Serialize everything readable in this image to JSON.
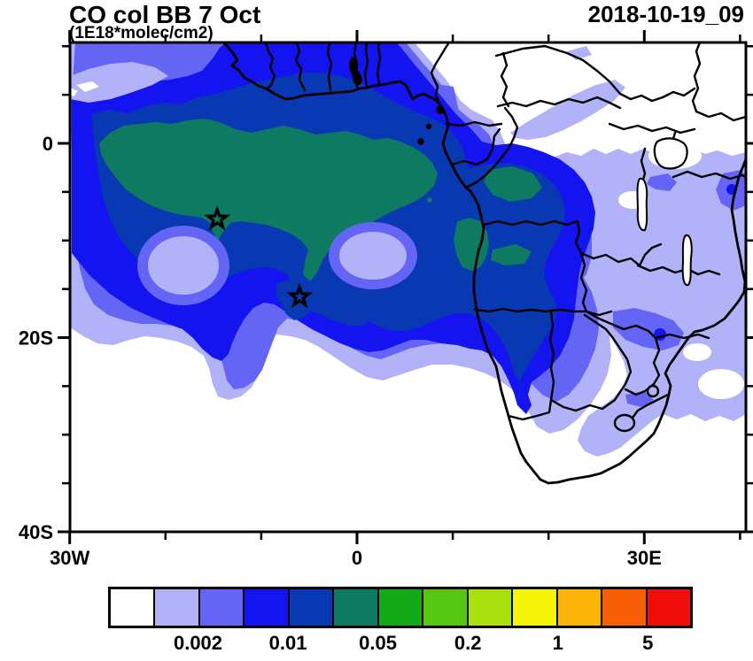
{
  "header": {
    "title": "CO col BB 7 Oct",
    "subtitle": "(1E18*molec/cm2)",
    "datetime": "2018-10-19_09"
  },
  "axes": {
    "x": {
      "major": [
        {
          "lon": -30,
          "label": "30W"
        },
        {
          "lon": 0,
          "label": "0"
        },
        {
          "lon": 30,
          "label": "30E"
        }
      ],
      "minor_lons": [
        -20,
        -10,
        10,
        20,
        40
      ]
    },
    "y": {
      "major": [
        {
          "lat": 0,
          "label": "0"
        },
        {
          "lat": -20,
          "label": "20S"
        },
        {
          "lat": -40,
          "label": "40S"
        }
      ],
      "minor_lats": [
        10,
        5,
        -5,
        -10,
        -15,
        -25,
        -30,
        -35
      ]
    }
  },
  "colorbar": {
    "colors": [
      "#ffffff",
      "#b2b2f8",
      "#6565f5",
      "#1414f0",
      "#0838b2",
      "#0e7a62",
      "#12aa16",
      "#55c712",
      "#aadf10",
      "#f5f50a",
      "#fbb408",
      "#f85e08",
      "#f20d0d"
    ],
    "labels": [
      {
        "text": "0.002",
        "boundary_index": 2
      },
      {
        "text": "0.01",
        "boundary_index": 4
      },
      {
        "text": "0.05",
        "boundary_index": 6
      },
      {
        "text": "0.2",
        "boundary_index": 8
      },
      {
        "text": "1",
        "boundary_index": 10
      },
      {
        "text": "5",
        "boundary_index": 12
      }
    ]
  },
  "chart_data": {
    "type": "heatmap",
    "subtype": "filled-contour-map",
    "title": "CO col BB 7 Oct",
    "units": "1E18*molec/cm2",
    "timestamp": "2018-10-19_09",
    "region": "Africa and tropical Atlantic Ocean",
    "lon_range": [
      -30,
      40.6
    ],
    "lat_range": [
      -40,
      10.4
    ],
    "grid": false,
    "levels": [
      0.001,
      0.002,
      0.005,
      0.01,
      0.02,
      0.05,
      0.1,
      0.2,
      0.5,
      1,
      2,
      5
    ],
    "level_colors": [
      "#ffffff",
      "#b2b2f8",
      "#6565f5",
      "#1414f0",
      "#0838b2",
      "#0e7a62",
      "#12aa16",
      "#55c712",
      "#aadf10",
      "#f5f50a",
      "#fbb408",
      "#f85e08",
      "#f20d0d"
    ],
    "labeled_levels": [
      0.002,
      0.01,
      0.05,
      0.2,
      1,
      5
    ],
    "markers": [
      {
        "symbol": "star",
        "lon": -14.6,
        "lat": -7.8
      },
      {
        "symbol": "star",
        "lon": -6.0,
        "lat": -15.8
      }
    ],
    "field_features": [
      {
        "filled_level_range": "0.05-0.1",
        "color": "#0e7a62",
        "where": "elongated core over tropical Atlantic ~24W-5E between 1S-10S, plus coastal patches near Gabon/Congo and inland Angola"
      },
      {
        "filled_level_range": "0.02-0.05",
        "color": "#0838b2",
        "where": "broad band over Gulf of Guinea, eastern Atlantic, Congo basin, Angola and the Namibian coast"
      },
      {
        "filled_level_range": "0.01-0.02",
        "color": "#1414f0",
        "where": "large plume over eastern tropical Atlantic and central-southern Africa down to ~25S"
      },
      {
        "filled_level_range": "0.005-0.01",
        "color": "#6565f5",
        "where": "fringe around plume; patches over Zambia, Botswana, Tanzania and east coast"
      },
      {
        "filled_level_range": "0.002-0.005",
        "color": "#b2b2f8",
        "where": "outermost fringe over most of domain except Sahel, Horn of Africa and far southern Africa"
      },
      {
        "filled_level_range": "<0.002",
        "color": "#ffffff",
        "where": "northeast Africa, southern ocean and South African interior"
      }
    ]
  }
}
